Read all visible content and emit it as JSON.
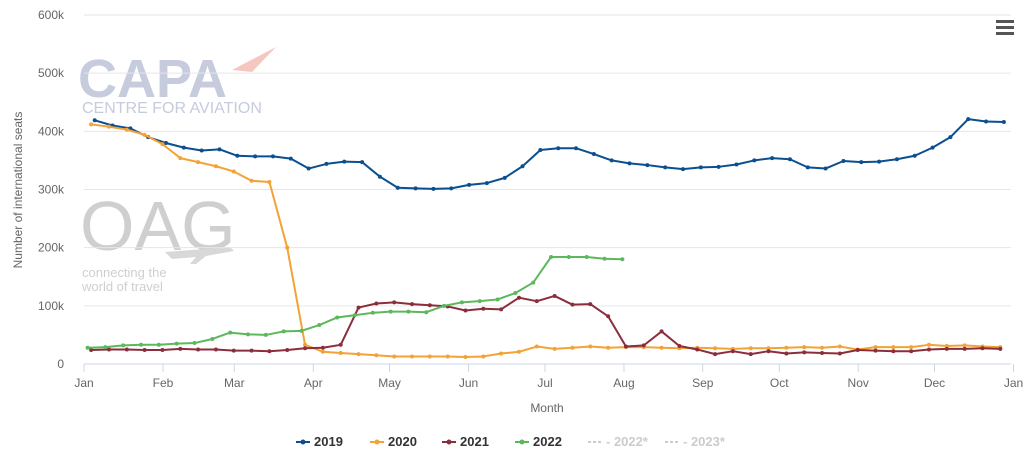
{
  "chart_data": {
    "type": "line",
    "title": "",
    "xlabel": "Month",
    "ylabel": "Number of international seats",
    "ylim": [
      0,
      600000
    ],
    "yticks": [
      {
        "value": 0,
        "label": "0"
      },
      {
        "value": 100000,
        "label": "100k"
      },
      {
        "value": 200000,
        "label": "200k"
      },
      {
        "value": 300000,
        "label": "300k"
      },
      {
        "value": 400000,
        "label": "400k"
      },
      {
        "value": 500000,
        "label": "500k"
      },
      {
        "value": 600000,
        "label": "600k"
      }
    ],
    "xlim": [
      0,
      52
    ],
    "xticks": [
      {
        "week": 0,
        "label": "Jan"
      },
      {
        "week": 4.43,
        "label": "Feb"
      },
      {
        "week": 8.43,
        "label": "Mar"
      },
      {
        "week": 12.86,
        "label": "Apr"
      },
      {
        "week": 17.14,
        "label": "May"
      },
      {
        "week": 21.57,
        "label": "Jun"
      },
      {
        "week": 25.86,
        "label": "Jul"
      },
      {
        "week": 30.29,
        "label": "Aug"
      },
      {
        "week": 34.71,
        "label": "Sep"
      },
      {
        "week": 39.0,
        "label": "Oct"
      },
      {
        "week": 43.43,
        "label": "Nov"
      },
      {
        "week": 47.71,
        "label": "Dec"
      },
      {
        "week": 52.14,
        "label": "Jan"
      }
    ],
    "grid": "horizontal",
    "legend_position": "bottom-center",
    "series": [
      {
        "name": "2019",
        "color": "#0b4f8f",
        "start_week": 0.6,
        "values": [
          419000,
          410000,
          405000,
          390000,
          380000,
          372000,
          367000,
          369000,
          358000,
          357000,
          357000,
          353000,
          336000,
          344000,
          348000,
          347000,
          322000,
          303000,
          302000,
          301000,
          302000,
          308000,
          311000,
          320000,
          340000,
          368000,
          371000,
          371000,
          361000,
          350000,
          345000,
          342000,
          338000,
          335000,
          338000,
          339000,
          343000,
          350000,
          354000,
          352000,
          338000,
          336000,
          349000,
          347000,
          348000,
          352000,
          358000,
          372000,
          390000,
          421000,
          417000,
          416000
        ]
      },
      {
        "name": "2020",
        "color": "#f4a236",
        "start_week": 0.4,
        "values": [
          412000,
          408000,
          403000,
          394000,
          378000,
          354000,
          347000,
          340000,
          331000,
          315000,
          313000,
          200000,
          33000,
          21000,
          19000,
          17000,
          15000,
          13000,
          13000,
          13000,
          13000,
          12000,
          13000,
          18000,
          21000,
          30000,
          26000,
          28000,
          30000,
          28000,
          29000,
          29000,
          28000,
          27000,
          28000,
          27000,
          26000,
          27000,
          27000,
          28000,
          29000,
          28000,
          30000,
          25000,
          29000,
          29000,
          29000,
          33000,
          31000,
          32000,
          30000,
          29000
        ]
      },
      {
        "name": "2021",
        "color": "#8b2e3c",
        "start_week": 0.4,
        "values": [
          24000,
          25000,
          25000,
          24000,
          24000,
          26000,
          25000,
          25000,
          23000,
          23000,
          22000,
          24000,
          27000,
          28000,
          33000,
          97000,
          104000,
          106000,
          103000,
          101000,
          99000,
          92000,
          95000,
          94000,
          114000,
          108000,
          117000,
          102000,
          103000,
          82000,
          30000,
          32000,
          56000,
          31000,
          25000,
          17000,
          22000,
          17000,
          22000,
          18000,
          20000,
          19000,
          18000,
          24000,
          23000,
          22000,
          22000,
          25000,
          26000,
          26000,
          27000,
          26000
        ]
      },
      {
        "name": "2022",
        "color": "#5cb85c",
        "start_week": 0.2,
        "values": [
          28000,
          29000,
          32000,
          33000,
          33000,
          35000,
          36000,
          43000,
          54000,
          51000,
          50000,
          56000,
          57000,
          67000,
          80000,
          84000,
          88000,
          90000,
          90000,
          89000,
          100000,
          106000,
          108000,
          111000,
          122000,
          140000,
          184000,
          184000,
          184000,
          181000,
          180000
        ]
      }
    ],
    "hidden_series": [
      {
        "name": "- 2022*",
        "color": "#cccccc"
      },
      {
        "name": "- 2023*",
        "color": "#cccccc"
      }
    ]
  },
  "watermark": {
    "capa_title": "CAPA",
    "capa_subtitle": "CENTRE FOR AVIATION",
    "oag_title": "OAG",
    "oag_line1": "connecting the",
    "oag_line2": "world of travel"
  },
  "menu_icon": "hamburger-menu-icon"
}
